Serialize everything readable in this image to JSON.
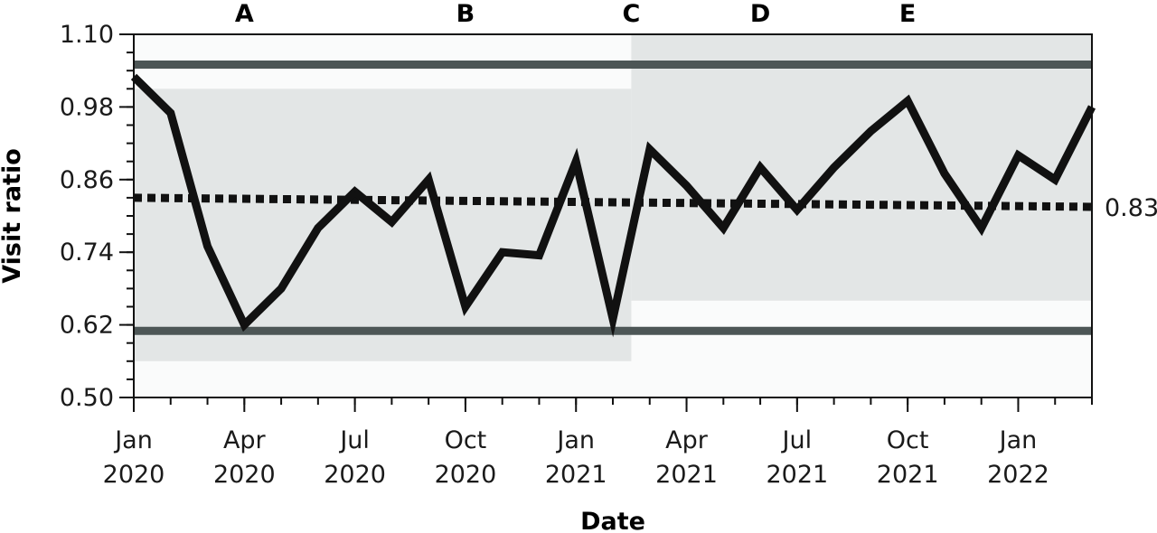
{
  "chart_data": {
    "type": "line",
    "title": "",
    "xlabel": "Date",
    "ylabel": "Visit ratio",
    "ylim": [
      0.5,
      1.1
    ],
    "yticks": [
      "0.50",
      "0.62",
      "0.74",
      "0.86",
      "0.98",
      "1.10"
    ],
    "xlim": [
      "2020-01",
      "2022-03"
    ],
    "xticks": [
      {
        "date": "2020-01",
        "line1": "Jan",
        "line2": "2020"
      },
      {
        "date": "2020-04",
        "line1": "Apr",
        "line2": "2020"
      },
      {
        "date": "2020-07",
        "line1": "Jul",
        "line2": "2020"
      },
      {
        "date": "2020-10",
        "line1": "Oct",
        "line2": "2020"
      },
      {
        "date": "2021-01",
        "line1": "Jan",
        "line2": "2021"
      },
      {
        "date": "2021-04",
        "line1": "Apr",
        "line2": "2021"
      },
      {
        "date": "2021-07",
        "line1": "Jul",
        "line2": "2021"
      },
      {
        "date": "2021-10",
        "line1": "Oct",
        "line2": "2021"
      },
      {
        "date": "2022-01",
        "line1": "Jan",
        "line2": "2022"
      }
    ],
    "phases": [
      {
        "label": "A",
        "date": "2020-04"
      },
      {
        "label": "B",
        "date": "2020-10"
      },
      {
        "label": "C",
        "date": "2021-02.5"
      },
      {
        "label": "D",
        "date": "2021-06"
      },
      {
        "label": "E",
        "date": "2021-10"
      }
    ],
    "series": [
      {
        "x": [
          "2020-01",
          "2020-02",
          "2020-03",
          "2020-04",
          "2020-05",
          "2020-06",
          "2020-07",
          "2020-08",
          "2020-09",
          "2020-10",
          "2020-11",
          "2020-12",
          "2021-01",
          "2021-02",
          "2021-03",
          "2021-04",
          "2021-05",
          "2021-06",
          "2021-07",
          "2021-08",
          "2021-09",
          "2021-10",
          "2021-11",
          "2021-12",
          "2022-01",
          "2022-02",
          "2022-03"
        ],
        "values": [
          1.03,
          0.97,
          0.75,
          0.62,
          0.68,
          0.78,
          0.84,
          0.79,
          0.86,
          0.65,
          0.74,
          0.735,
          0.89,
          0.63,
          0.91,
          0.85,
          0.78,
          0.88,
          0.81,
          0.88,
          0.94,
          0.99,
          0.87,
          0.78,
          0.9,
          0.86,
          0.98
        ]
      }
    ],
    "center_line": {
      "start": 0.83,
      "end": 0.815,
      "label": "0.83"
    },
    "control_limits": {
      "upper": 1.05,
      "lower": 0.61
    },
    "bands": [
      {
        "x_from": "2020-01",
        "x_to": "2021-02.5",
        "y_from": 0.56,
        "y_to": 1.01
      },
      {
        "x_from": "2021-02.5",
        "x_to": "2022-03",
        "y_from": 0.66,
        "y_to": 1.1
      }
    ],
    "grid": false,
    "legend": "none",
    "colors": {
      "series": "#111111",
      "center_line": "#111111",
      "control_limits": "#4d5656",
      "band": "#e3e6e6",
      "plot_bg": "#fafbfb"
    }
  }
}
